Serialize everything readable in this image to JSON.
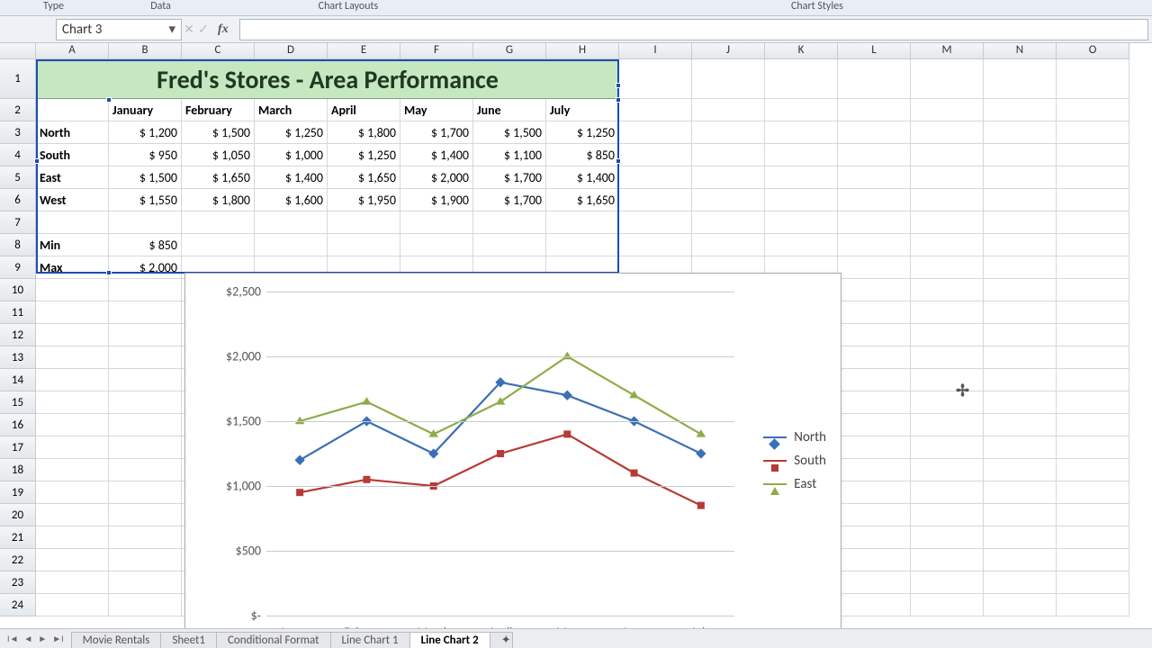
{
  "ribbon_groups": [
    "Type",
    "Data",
    "Chart Layouts",
    "Chart Styles"
  ],
  "ribbon_group_widths": [
    160,
    160,
    400,
    1000
  ],
  "name_box": "Chart 3",
  "fx_symbol": "fx",
  "columns": [
    "A",
    "B",
    "C",
    "D",
    "E",
    "F",
    "G",
    "H",
    "I",
    "J",
    "K",
    "L",
    "M",
    "N",
    "O"
  ],
  "title_cell": "Fred's Stores - Area Performance",
  "title_bg": "#c5e8c1",
  "months": [
    "January",
    "February",
    "March",
    "April",
    "May",
    "June",
    "July"
  ],
  "regions": [
    "North",
    "South",
    "East",
    "West"
  ],
  "table": {
    "North": [
      "$   1,200",
      "$   1,500",
      "$   1,250",
      "$   1,800",
      "$   1,700",
      "$   1,500",
      "$   1,250"
    ],
    "South": [
      "$      950",
      "$   1,050",
      "$   1,000",
      "$   1,250",
      "$   1,400",
      "$   1,100",
      "$      850"
    ],
    "East": [
      "$   1,500",
      "$   1,650",
      "$   1,400",
      "$   1,650",
      "$   2,000",
      "$   1,700",
      "$   1,400"
    ],
    "West": [
      "$   1,550",
      "$   1,800",
      "$   1,600",
      "$   1,950",
      "$   1,900",
      "$   1,700",
      "$   1,650"
    ]
  },
  "stats": {
    "min_label": "Min",
    "min_value": "$      850",
    "max_label": "Max",
    "max_value": "$   2,000"
  },
  "row_count": 24,
  "chart": {
    "type": "line",
    "categories": [
      "January",
      "February",
      "March",
      "April",
      "May",
      "June",
      "July"
    ],
    "series": [
      {
        "name": "North",
        "color": "#3b6fb6",
        "marker": "diamond",
        "values": [
          1200,
          1500,
          1250,
          1800,
          1700,
          1500,
          1250
        ]
      },
      {
        "name": "South",
        "color": "#b83a34",
        "marker": "square",
        "values": [
          950,
          1050,
          1000,
          1250,
          1400,
          1100,
          850
        ]
      },
      {
        "name": "East",
        "color": "#8fab4a",
        "marker": "triangle",
        "values": [
          1500,
          1650,
          1400,
          1650,
          2000,
          1700,
          1400
        ]
      }
    ],
    "ymin": 0,
    "ymax": 2500,
    "ystep": 500,
    "yticks": [
      "$-",
      "$500",
      "$1,000",
      "$1,500",
      "$2,000",
      "$2,500"
    ],
    "plot_bg": "#ffffff",
    "grid_color": "#c8cbce",
    "line_width": 2.2,
    "marker_size": 8,
    "label_fontsize": 14,
    "legend_pos": "right"
  },
  "selection": {
    "top_row": 1,
    "bottom_row": 6,
    "left_col": "A",
    "right_col": "H",
    "anchor": "B3"
  },
  "cursor_position": {
    "col": "L",
    "row": 13
  },
  "sheet_tabs": [
    "Movie Rentals",
    "Sheet1",
    "Conditional Format",
    "Line Chart 1",
    "Line Chart 2"
  ],
  "active_tab": 4,
  "colors": {
    "selection_border": "#1a4db3",
    "header_bg": "#e8ecf0"
  }
}
